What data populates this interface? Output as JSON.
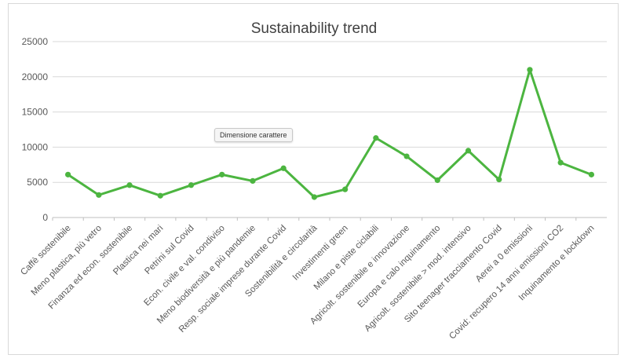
{
  "chart_data": {
    "type": "line",
    "title": "Sustainability trend",
    "xlabel": "",
    "ylabel": "",
    "ylim": [
      0,
      25000
    ],
    "yticks": [
      0,
      5000,
      10000,
      15000,
      20000,
      25000
    ],
    "grid": true,
    "legend": "none",
    "series_color": "#4cb540",
    "categories": [
      "Caffè sostenibile",
      "Meno plastica, più vetro",
      "Finanza ed econ. sostenibile",
      "Plastica nei mari",
      "Petrini sul Covid",
      "Econ. civile e val. condiviso",
      "Meno biodiversità e più pandemie",
      "Resp. sociale imprese durante Covid",
      "Sostenibilità e circolarità",
      "Investimenti green",
      "Milano e piste ciclabili",
      "Agricolt. sostenibile e innovazione",
      "Europa e calo inquinamento",
      "Agricolt. sostenibile > mod. intensivo",
      "Sito teenager tracciamento Covid",
      "Aerei a 0 emissioni",
      "Covid: recupero 14 anni emissioni CO2",
      "Inquinamento e lockdown"
    ],
    "series": [
      {
        "values": [
          6100,
          3200,
          4600,
          3100,
          4600,
          6100,
          5200,
          7000,
          2900,
          4000,
          11300,
          8700,
          5300,
          9500,
          5400,
          21000,
          7800,
          6100
        ]
      }
    ]
  },
  "tooltip": {
    "text": "Dimensione carattere"
  }
}
